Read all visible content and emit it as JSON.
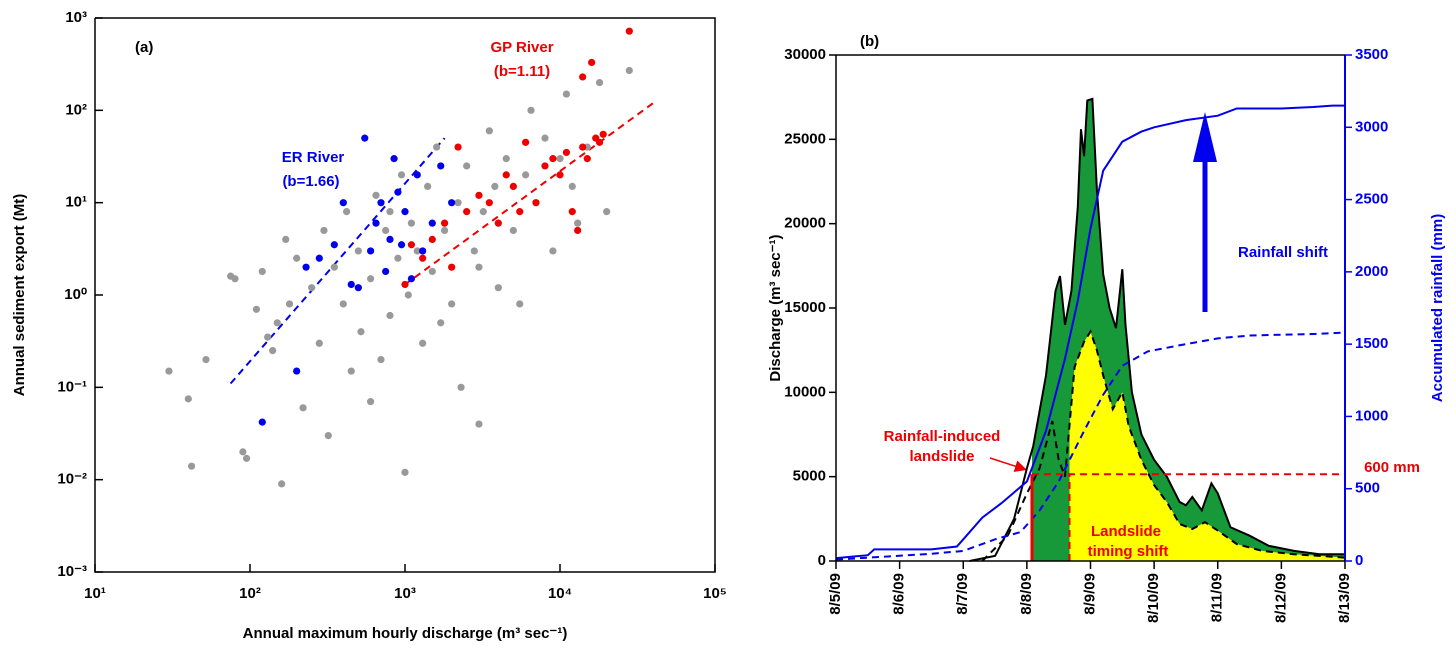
{
  "chart_data": [
    {
      "type": "scatter",
      "label": "(a)",
      "xlabel": "Annual maximum hourly discharge (m³ sec⁻¹)",
      "ylabel": "Annual sediment export (Mt)",
      "xscale": "log",
      "yscale": "log",
      "xlim": [
        10,
        100000
      ],
      "ylim": [
        0.001,
        1000
      ],
      "xticks": [
        {
          "value": 10,
          "label": "10¹"
        },
        {
          "value": 100,
          "label": "10²"
        },
        {
          "value": 1000,
          "label": "10³"
        },
        {
          "value": 10000,
          "label": "10⁴"
        },
        {
          "value": 100000,
          "label": "10⁵"
        }
      ],
      "yticks": [
        {
          "value": 0.001,
          "label": "10⁻³"
        },
        {
          "value": 0.01,
          "label": "10⁻²"
        },
        {
          "value": 0.1,
          "label": "10⁻¹"
        },
        {
          "value": 1,
          "label": "10⁰"
        },
        {
          "value": 10,
          "label": "10¹"
        },
        {
          "value": 100,
          "label": "10²"
        },
        {
          "value": 1000,
          "label": "10³"
        }
      ],
      "series": [
        {
          "color": "#999999",
          "x": [
            30,
            40,
            42,
            52,
            75,
            80,
            90,
            95,
            110,
            120,
            130,
            140,
            150,
            160,
            170,
            180,
            200,
            220,
            250,
            280,
            300,
            320,
            350,
            400,
            420,
            450,
            500,
            520,
            600,
            650,
            700,
            750,
            800,
            900,
            950,
            1000,
            1050,
            1100,
            1200,
            1300,
            1400,
            1500,
            1600,
            1800,
            2000,
            2200,
            2500,
            2800,
            3000,
            3200,
            3500,
            3800,
            4000,
            4500,
            5000,
            5500,
            6000,
            6500,
            7000,
            8000,
            9000,
            10000,
            11000,
            12000,
            13000,
            15000,
            18000,
            20000,
            28000,
            2300,
            1700,
            600,
            800,
            3000
          ],
          "values": [
            0.15,
            0.075,
            0.014,
            0.2,
            1.6,
            1.5,
            0.02,
            0.017,
            0.7,
            1.8,
            0.35,
            0.25,
            0.5,
            0.009,
            4,
            0.8,
            2.5,
            0.06,
            1.2,
            0.3,
            5,
            0.03,
            2,
            0.8,
            8,
            0.15,
            3,
            0.4,
            1.5,
            12,
            0.2,
            5,
            0.6,
            2.5,
            20,
            0.012,
            1,
            6,
            3,
            0.3,
            15,
            1.8,
            40,
            5,
            0.8,
            10,
            25,
            3,
            0.04,
            8,
            60,
            15,
            1.2,
            30,
            5,
            0.8,
            20,
            100,
            10,
            50,
            3,
            30,
            150,
            15,
            6,
            40,
            200,
            8,
            270,
            0.1,
            0.5,
            0.07,
            8,
            2
          ]
        },
        {
          "color": "#0000ee",
          "x": [
            120,
            200,
            230,
            280,
            350,
            400,
            450,
            500,
            550,
            600,
            650,
            700,
            750,
            800,
            850,
            900,
            950,
            1000,
            1100,
            1200,
            1300,
            1500,
            1700,
            2000
          ],
          "values": [
            0.042,
            0.15,
            2,
            2.5,
            3.5,
            10,
            1.3,
            1.2,
            50,
            3,
            6,
            10,
            1.8,
            4,
            30,
            13,
            3.5,
            8,
            1.5,
            20,
            3,
            6,
            25,
            10
          ]
        },
        {
          "color": "#ee0000",
          "x": [
            1000,
            1100,
            1300,
            1500,
            1800,
            2000,
            2200,
            2500,
            3000,
            3500,
            4000,
            4500,
            5000,
            5500,
            6000,
            7000,
            8000,
            9000,
            10000,
            11000,
            12000,
            13000,
            14000,
            15000,
            16000,
            17000,
            18000,
            19000,
            14000,
            28000
          ],
          "values": [
            1.3,
            3.5,
            2.5,
            4,
            6,
            2,
            40,
            8,
            12,
            10,
            6,
            20,
            15,
            8,
            45,
            10,
            25,
            30,
            20,
            35,
            8,
            5,
            40,
            30,
            330,
            50,
            45,
            55,
            230,
            720
          ]
        }
      ],
      "fit_lines": [
        {
          "color": "#0000ee",
          "x": [
            75,
            1800
          ],
          "values": [
            0.11,
            50
          ]
        },
        {
          "color": "#ee0000",
          "x": [
            1000,
            40000
          ],
          "values": [
            1.3,
            120
          ]
        }
      ],
      "annotations": [
        {
          "text": "(a)",
          "color": "#000000"
        },
        {
          "text": "GP River",
          "color": "#ee0000"
        },
        {
          "text": "(b=1.11)",
          "color": "#ee0000"
        },
        {
          "text": "ER River",
          "color": "#0000ee"
        },
        {
          "text": "(b=1.66)",
          "color": "#0000ee"
        }
      ]
    },
    {
      "type": "line",
      "label": "(b)",
      "ylabel": "Discharge (m³ sec⁻¹)",
      "y2label": "Accumulated rainfall (mm)",
      "xlim": [
        0,
        8
      ],
      "xticks": [
        {
          "value": 0,
          "label": "8/5/09"
        },
        {
          "value": 1,
          "label": "8/6/09"
        },
        {
          "value": 2,
          "label": "8/7/09"
        },
        {
          "value": 3,
          "label": "8/8/09"
        },
        {
          "value": 4,
          "label": "8/9/09"
        },
        {
          "value": 5,
          "label": "8/10/09"
        },
        {
          "value": 6,
          "label": "8/11/09"
        },
        {
          "value": 7,
          "label": "8/12/09"
        },
        {
          "value": 8,
          "label": "8/13/09"
        }
      ],
      "ylim": [
        0,
        30000
      ],
      "yticks": [
        0,
        5000,
        10000,
        15000,
        20000,
        25000,
        30000
      ],
      "y2lim": [
        0,
        3500
      ],
      "y2ticks": [
        0,
        500,
        1000,
        1500,
        2000,
        2500,
        3000,
        3500
      ],
      "y2color": "#0000ee",
      "landslide_times": [
        3.08,
        3.67
      ],
      "threshold": {
        "value": 600,
        "label": "600 mm",
        "color": "#ee0000"
      },
      "series": [
        {
          "color": "#000000",
          "dash": false,
          "axis": "y",
          "fill": "#17993a",
          "x": [
            2.1,
            2.5,
            2.8,
            3.0,
            3.1,
            3.3,
            3.45,
            3.52,
            3.6,
            3.7,
            3.8,
            3.85,
            3.9,
            3.95,
            4.03,
            4.1,
            4.2,
            4.3,
            4.4,
            4.5,
            4.55,
            4.65,
            4.8,
            5.0,
            5.2,
            5.4,
            5.5,
            5.6,
            5.75,
            5.9,
            6.0,
            6.2,
            6.5,
            6.8,
            7.2,
            7.6,
            8.0
          ],
          "values": [
            0,
            300,
            2500,
            5500,
            6800,
            11000,
            16000,
            16900,
            14000,
            16000,
            21000,
            25600,
            24000,
            27300,
            27400,
            22000,
            17000,
            15000,
            13800,
            17300,
            14000,
            10000,
            7500,
            6000,
            5000,
            3500,
            3300,
            3800,
            3000,
            4600,
            4000,
            2000,
            1500,
            900,
            600,
            400,
            400
          ]
        },
        {
          "color": "#000000",
          "dash": true,
          "axis": "y",
          "fill": "#ffff00",
          "x": [
            2.3,
            2.7,
            3.0,
            3.2,
            3.4,
            3.5,
            3.6,
            3.75,
            3.9,
            4.0,
            4.1,
            4.2,
            4.35,
            4.5,
            4.6,
            4.8,
            5.0,
            5.2,
            5.4,
            5.6,
            5.8,
            6.0,
            6.3,
            6.7,
            7.2,
            7.6,
            8.0
          ],
          "values": [
            0,
            1500,
            4000,
            5500,
            8300,
            6000,
            5000,
            11500,
            13000,
            13600,
            12500,
            11000,
            9000,
            10000,
            8000,
            6000,
            4500,
            3500,
            2200,
            1900,
            2300,
            1800,
            1000,
            600,
            400,
            300,
            200
          ]
        },
        {
          "color": "#0000ee",
          "dash": false,
          "axis": "y2",
          "x": [
            0,
            0.5,
            0.6,
            1.5,
            1.9,
            2.0,
            2.3,
            2.6,
            3.0,
            3.3,
            3.6,
            3.8,
            4.0,
            4.2,
            4.5,
            4.8,
            5.0,
            5.5,
            6.0,
            6.3,
            7.0,
            7.5,
            7.8,
            8.0
          ],
          "values": [
            20,
            40,
            80,
            80,
            100,
            150,
            300,
            400,
            550,
            900,
            1400,
            1800,
            2300,
            2700,
            2900,
            2970,
            3000,
            3050,
            3080,
            3130,
            3130,
            3140,
            3150,
            3150
          ]
        },
        {
          "color": "#0000ee",
          "dash": true,
          "axis": "y2",
          "x": [
            0,
            1.5,
            2.0,
            2.5,
            2.9,
            3.2,
            3.5,
            3.9,
            4.2,
            4.5,
            4.9,
            5.5,
            6.0,
            6.5,
            7.5,
            8.0
          ],
          "values": [
            10,
            50,
            70,
            150,
            200,
            350,
            550,
            900,
            1150,
            1350,
            1450,
            1500,
            1540,
            1560,
            1570,
            1580
          ]
        }
      ],
      "annotations": [
        {
          "text": "(b)",
          "color": "#000000"
        },
        {
          "text": "Rainfall shift",
          "color": "#0000ee"
        },
        {
          "text": "Rainfall-induced",
          "color": "#ee0000"
        },
        {
          "text": "landslide",
          "color": "#ee0000"
        },
        {
          "text": "Landslide",
          "color": "#ee0000"
        },
        {
          "text": "timing shift",
          "color": "#ee0000"
        }
      ]
    }
  ]
}
